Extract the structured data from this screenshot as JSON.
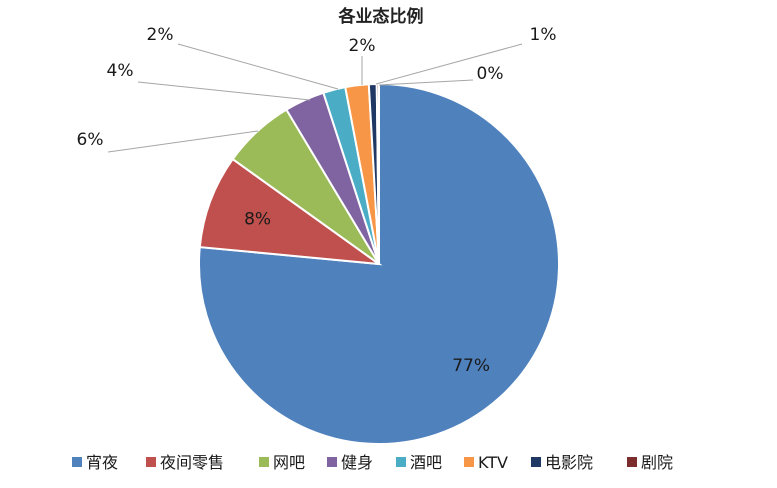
{
  "chart_data": {
    "type": "pie",
    "title": "各业态比例",
    "categories": [
      "宵夜",
      "夜间零售",
      "网吧",
      "健身",
      "酒吧",
      "KTV",
      "电影院",
      "剧院"
    ],
    "values": [
      76.5,
      8.4,
      6.5,
      3.6,
      2.0,
      2.1,
      0.7,
      0.2
    ],
    "labels": [
      "77%",
      "8%",
      "6%",
      "4%",
      "2%",
      "2%",
      "1%",
      "0%"
    ],
    "colors": [
      "#4f81bd",
      "#c0504d",
      "#9bbb59",
      "#8064a2",
      "#4bacc6",
      "#f79646",
      "#1f3864",
      "#7b2c2c"
    ],
    "legend_position": "bottom"
  }
}
